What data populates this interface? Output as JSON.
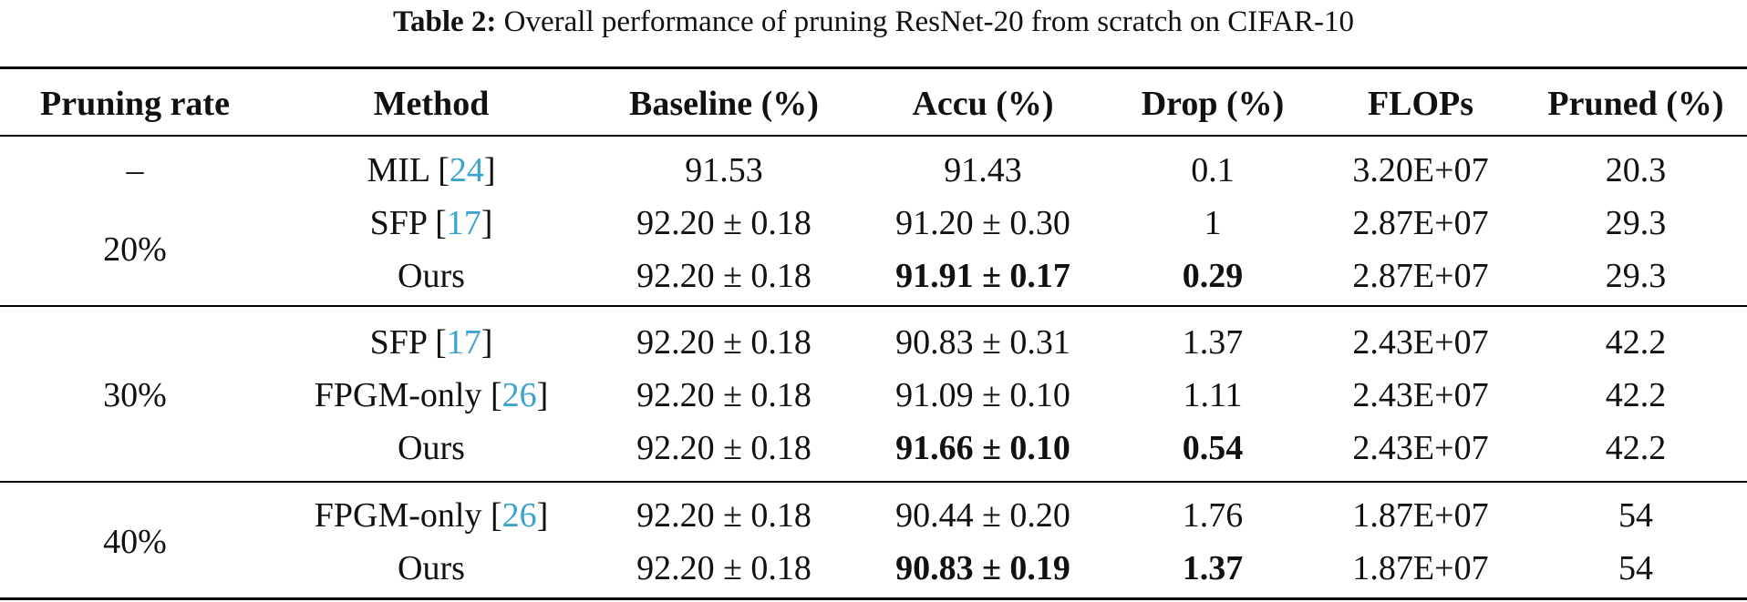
{
  "caption": {
    "label": "Table 2:",
    "text": "Overall performance of pruning ResNet-20 from scratch on CIFAR-10"
  },
  "headers": [
    "Pruning rate",
    "Method",
    "Baseline (%)",
    "Accu (%)",
    "Drop (%)",
    "FLOPs",
    "Pruned (%)"
  ],
  "groups": [
    {
      "rate": "–",
      "rows": [
        {
          "method": "MIL",
          "cite": "24",
          "baseline": "91.53",
          "accu": "91.43",
          "drop": "0.1",
          "flops": "3.20E+07",
          "pruned": "20.3",
          "best": false
        }
      ]
    },
    {
      "rate": "20%",
      "rows": [
        {
          "method": "SFP",
          "cite": "17",
          "baseline": "92.20 ± 0.18",
          "accu": "91.20 ± 0.30",
          "drop": "1",
          "flops": "2.87E+07",
          "pruned": "29.3",
          "best": false
        },
        {
          "method": "Ours",
          "cite": "",
          "baseline": "92.20 ± 0.18",
          "accu": "91.91 ± 0.17",
          "drop": "0.29",
          "flops": "2.87E+07",
          "pruned": "29.3",
          "best": true
        }
      ]
    },
    {
      "rate": "30%",
      "rows": [
        {
          "method": "SFP",
          "cite": "17",
          "baseline": "92.20 ± 0.18",
          "accu": "90.83 ± 0.31",
          "drop": "1.37",
          "flops": "2.43E+07",
          "pruned": "42.2",
          "best": false
        },
        {
          "method": "FPGM-only",
          "cite": "26",
          "baseline": "92.20 ± 0.18",
          "accu": "91.09 ± 0.10",
          "drop": "1.11",
          "flops": "2.43E+07",
          "pruned": "42.2",
          "best": false
        },
        {
          "method": "Ours",
          "cite": "",
          "baseline": "92.20 ± 0.18",
          "accu": "91.66 ± 0.10",
          "drop": "0.54",
          "flops": "2.43E+07",
          "pruned": "42.2",
          "best": true
        }
      ]
    },
    {
      "rate": "40%",
      "rows": [
        {
          "method": "FPGM-only",
          "cite": "26",
          "baseline": "92.20 ± 0.18",
          "accu": "90.44 ± 0.20",
          "drop": "1.76",
          "flops": "1.87E+07",
          "pruned": "54",
          "best": false
        },
        {
          "method": "Ours",
          "cite": "",
          "baseline": "92.20 ± 0.18",
          "accu": "90.83 ± 0.19",
          "drop": "1.37",
          "flops": "1.87E+07",
          "pruned": "54",
          "best": true
        }
      ]
    }
  ]
}
